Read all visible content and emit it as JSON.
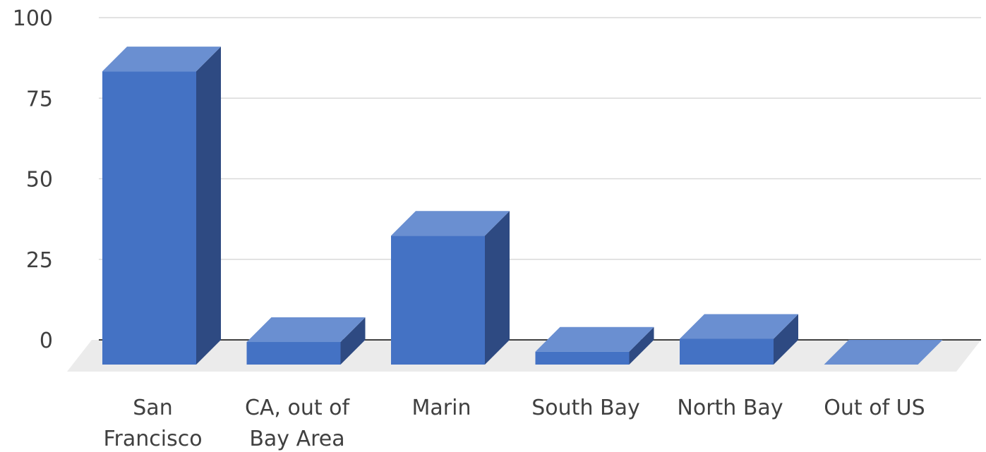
{
  "chart_data": {
    "type": "bar",
    "style": "3d-column",
    "categories": [
      "San\nFrancisco",
      "CA, out of\nBay Area",
      "Marin",
      "South Bay",
      "North Bay",
      "Out of US"
    ],
    "values": [
      91,
      7,
      40,
      4,
      8,
      0
    ],
    "title": "",
    "xlabel": "",
    "ylabel": "",
    "ylim": [
      0,
      100
    ],
    "yticks": [
      0,
      25,
      50,
      75,
      100
    ],
    "grid": true,
    "legend": "none",
    "colors": {
      "front": "#4472c4",
      "top": "#6a8fd1",
      "side": "#2e4a82",
      "floor": "#ebebeb",
      "grid": "#d9d9d9",
      "axis": "#404040"
    }
  }
}
